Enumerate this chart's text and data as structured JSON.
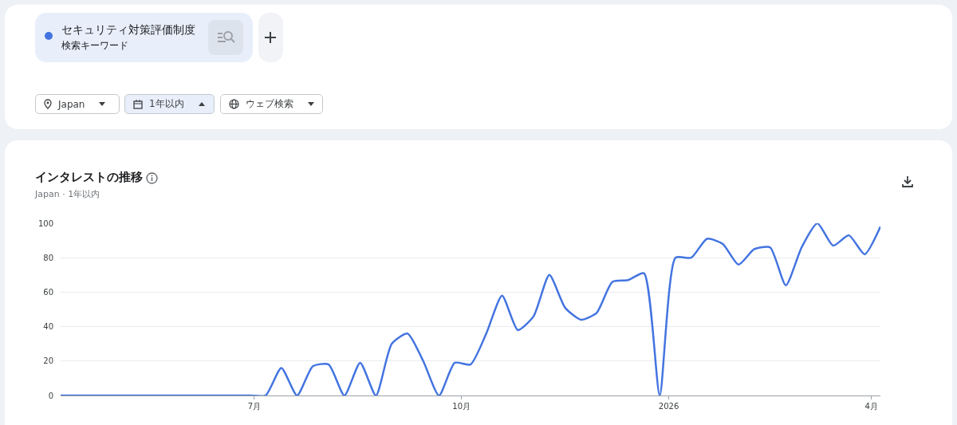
{
  "chart_data": {
    "type": "line",
    "title": "インタレストの推移",
    "subtitle": "Japan · 1年以内",
    "annotations": [
      "検索キーワード",
      "Japan",
      "1年以内",
      "ウェブ検索"
    ],
    "x": [
      "2025-04-06",
      "2025-04-13",
      "2025-04-20",
      "2025-04-27",
      "2025-05-04",
      "2025-05-11",
      "2025-05-18",
      "2025-05-25",
      "2025-06-01",
      "2025-06-08",
      "2025-06-15",
      "2025-06-22",
      "2025-06-29",
      "2025-07-06",
      "2025-07-13",
      "2025-07-20",
      "2025-07-27",
      "2025-08-03",
      "2025-08-10",
      "2025-08-17",
      "2025-08-24",
      "2025-08-31",
      "2025-09-07",
      "2025-09-14",
      "2025-09-21",
      "2025-09-28",
      "2025-10-05",
      "2025-10-12",
      "2025-10-19",
      "2025-10-26",
      "2025-11-02",
      "2025-11-09",
      "2025-11-16",
      "2025-11-23",
      "2025-11-30",
      "2025-12-07",
      "2025-12-14",
      "2025-12-21",
      "2025-12-28",
      "2026-01-04",
      "2026-01-11",
      "2026-01-18",
      "2026-01-25",
      "2026-02-01",
      "2026-02-08",
      "2026-02-15",
      "2026-02-22",
      "2026-03-01",
      "2026-03-08",
      "2026-03-15",
      "2026-03-22",
      "2026-03-29",
      "2026-04-05"
    ],
    "series": [
      {
        "name": "セキュリティ対策評価制度",
        "color": "#4374e0",
        "values": [
          0,
          0,
          0,
          0,
          0,
          0,
          0,
          0,
          0,
          0,
          0,
          0,
          0,
          0,
          16,
          0,
          17,
          18,
          0,
          19,
          0,
          30,
          36,
          20,
          0,
          19,
          18,
          36,
          58,
          38,
          46,
          70,
          51,
          44,
          48,
          66,
          67,
          71,
          0,
          80,
          80,
          91,
          88,
          76,
          85,
          86,
          64,
          86,
          100,
          87,
          93,
          82,
          98
        ]
      }
    ],
    "xlim": [
      "2025-04-06",
      "2026-04-05"
    ],
    "xticks": [
      {
        "value": "2025-07-01",
        "label": "7月"
      },
      {
        "value": "2025-10-01",
        "label": "10月"
      },
      {
        "value": "2026-01-01",
        "label": "2026"
      },
      {
        "value": "2026-04-01",
        "label": "4月"
      }
    ],
    "ylim": [
      0,
      100
    ],
    "yticks": [
      0,
      20,
      40,
      60,
      80,
      100
    ],
    "grid": "y",
    "legend": "top left",
    "marker": "none",
    "line_style": "solid"
  }
}
